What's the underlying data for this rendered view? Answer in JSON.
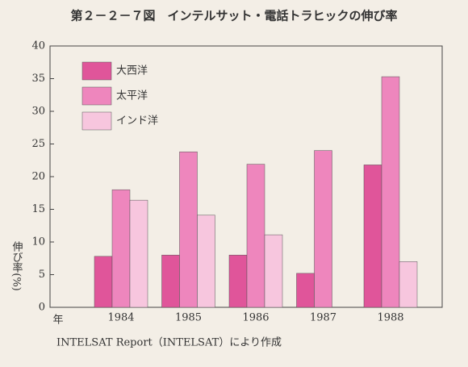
{
  "chart_data": {
    "type": "bar",
    "title": "第２－２－７図　インテルサット・電話トラヒックの伸び率",
    "y_label": "伸び率(%)",
    "x_label": "年",
    "footnote": "INTELSAT Report（INTELSAT）により作成",
    "categories": [
      "1984",
      "1985",
      "1986",
      "1987",
      "1988"
    ],
    "series": [
      {
        "name": "大西洋",
        "color": "#e0559a",
        "values": [
          7.8,
          8.0,
          8.0,
          5.2,
          21.8
        ]
      },
      {
        "name": "太平洋",
        "color": "#ee86bd",
        "values": [
          18.0,
          23.8,
          21.9,
          24.0,
          35.3
        ]
      },
      {
        "name": "インド洋",
        "color": "#f7c6de",
        "values": [
          16.4,
          14.1,
          11.1,
          null,
          7.0
        ]
      }
    ],
    "ylim": [
      0,
      40
    ],
    "yticks": [
      0,
      5,
      10,
      15,
      20,
      25,
      30,
      35,
      40
    ]
  }
}
